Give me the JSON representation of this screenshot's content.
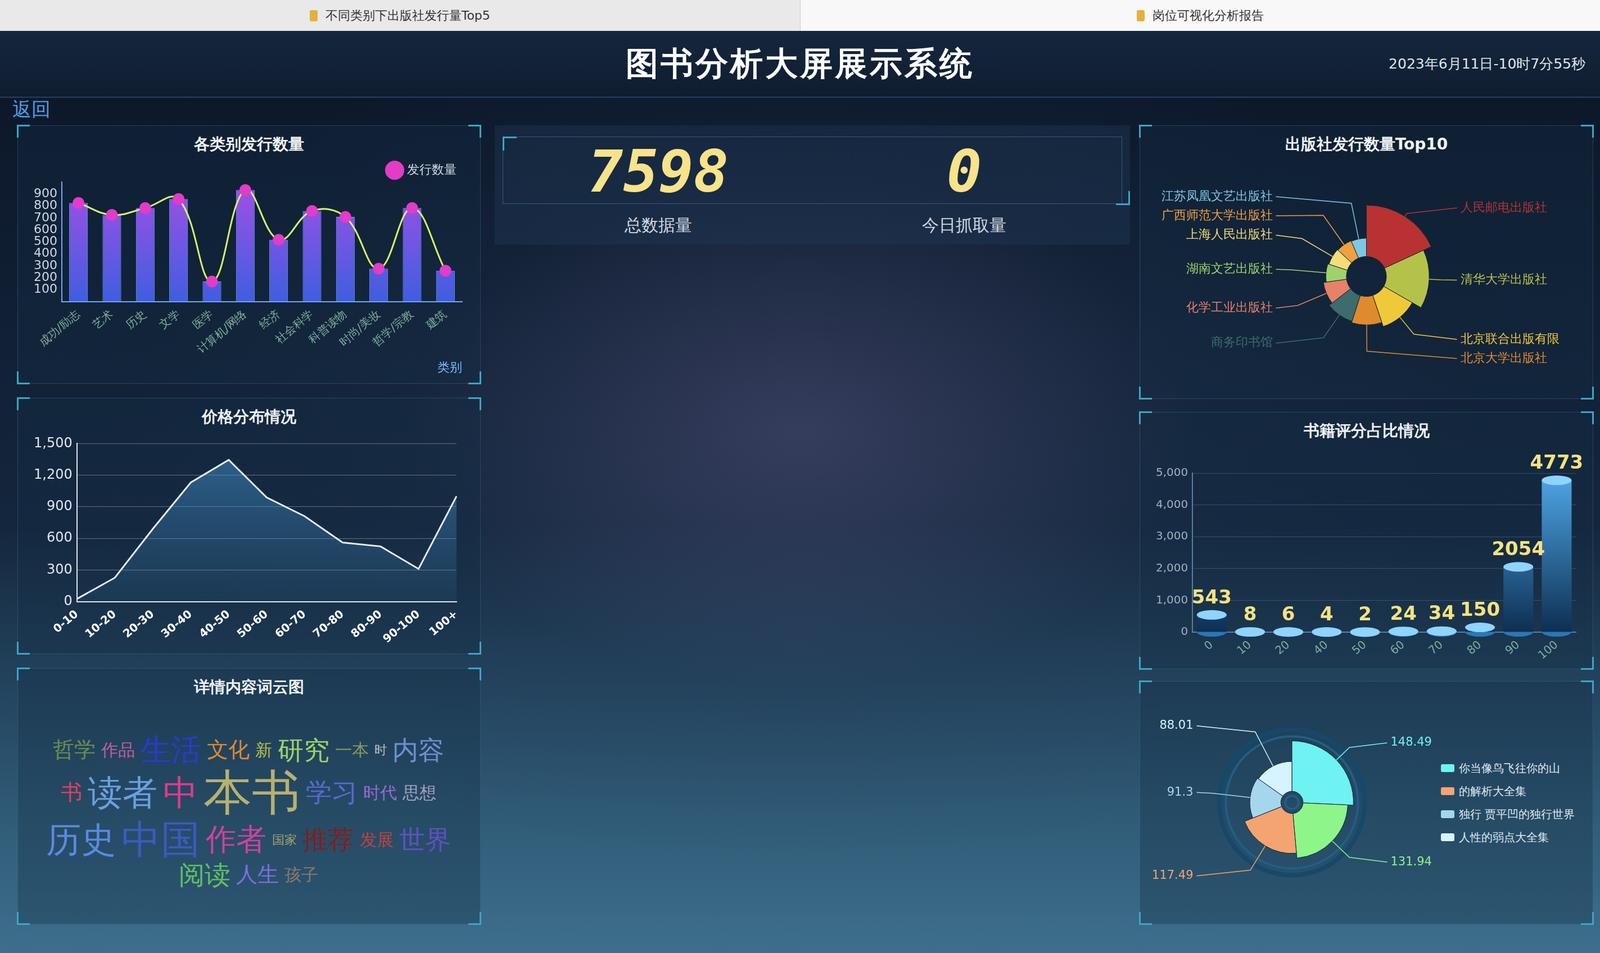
{
  "page": {
    "tabs": [
      "不同类别下出版社发行量Top5",
      "岗位可视化分析报告"
    ],
    "title": "图书分析大屏展示系统",
    "datetime": "2023年6月11日-10时7分55秒",
    "back": "返回",
    "stats": [
      {
        "label": "总数据量",
        "value": 7598
      },
      {
        "label": "今日抓取量",
        "value": 0
      }
    ]
  },
  "chart_data": [
    {
      "type": "bar",
      "title": "各类别发行数量",
      "categories": [
        "成功/励志",
        "艺术",
        "历史",
        "文学",
        "医学",
        "计算机/网络",
        "经济",
        "社会科学",
        "科普读物",
        "时尚/美妆",
        "哲学/宗教",
        "建筑"
      ],
      "series": [
        {
          "name": "发行数量",
          "type": "line",
          "color": "#d8f46a",
          "marker": "circle",
          "values": [
            825,
            725,
            783,
            858,
            167,
            933,
            517,
            758,
            708,
            275,
            783,
            258
          ]
        },
        {
          "type": "bar",
          "color": "#a24fe6",
          "values": [
            825,
            725,
            783,
            858,
            167,
            933,
            517,
            758,
            708,
            275,
            783,
            258
          ]
        }
      ],
      "xlabel": "类别",
      "ylim": [
        0,
        1000
      ],
      "yticks": [
        100,
        200,
        300,
        400,
        500,
        600,
        700,
        800,
        900
      ],
      "grid": false,
      "legend": "upper right"
    },
    {
      "type": "area",
      "title": "价格分布情况",
      "categories": [
        "0-10",
        "10-20",
        "20-30",
        "30-40",
        "40-50",
        "50-60",
        "60-70",
        "70-80",
        "80-90",
        "90-100",
        "100+"
      ],
      "values": [
        25,
        226,
        690,
        1130,
        1345,
        988,
        810,
        560,
        524,
        310,
        1000
      ],
      "color": "#e6eef8",
      "ylim": [
        0,
        1500
      ],
      "yticks": [
        0,
        300,
        600,
        900,
        {
          "value": 1200,
          "label": "1,200"
        },
        {
          "value": 1500,
          "label": "1,500"
        }
      ],
      "grid": true
    },
    {
      "type": "wordcloud",
      "title": "详情内容词云图",
      "words": [
        "哲学",
        "作品",
        "生活",
        "文化",
        "新",
        "研究",
        "一本",
        "时",
        "内容",
        "书",
        "读者",
        "中",
        "本书",
        "学习",
        "时代",
        "思想",
        "历史",
        "中国",
        "作者",
        "国家",
        "推荐",
        "发展",
        "世界",
        "阅读",
        "人生",
        "孩子"
      ],
      "weights": [
        3,
        2,
        5,
        3,
        2,
        4,
        2,
        1,
        4,
        3,
        6,
        6,
        9,
        4,
        2,
        2,
        6,
        7,
        5,
        1,
        4,
        2,
        4,
        4,
        3,
        2
      ],
      "colors": [
        "#6b8e4e",
        "#c05fa0",
        "#2a3ad0",
        "#e08a2e",
        "#b5c24a",
        "#9fd36a",
        "#8a9a5b",
        "#c0c0c0",
        "#7090d0",
        "#e04060",
        "#6aa0e0",
        "#e23a8a",
        "#b8b070",
        "#5a6ad0",
        "#9a6ad0",
        "#a0a0c0",
        "#5a8ae0",
        "#3a5ac0",
        "#d040a0",
        "#a0a070",
        "#802020",
        "#c04040",
        "#6050c0",
        "#60c060",
        "#7a70e0",
        "#8a7a6a"
      ]
    },
    {
      "type": "rose",
      "title": "出版社发行数量Top10",
      "categories": [
        "人民邮电出版社",
        "清华大学出版社",
        "北京联合出版有限",
        "北京大学出版社",
        "商务印书馆",
        "化学工业出版社",
        "湖南文艺出版社",
        "上海人民出版社",
        "广西师范大学出版社",
        "江苏凤凰文艺出版社"
      ],
      "values": [
        180,
        150,
        115,
        100,
        95,
        82,
        72,
        68,
        66,
        64
      ],
      "colors": [
        "#b83232",
        "#b5c24a",
        "#f0c93a",
        "#e08a2e",
        "#3d6b6e",
        "#e8806a",
        "#9fd36a",
        "#f5dc7a",
        "#f0a040",
        "#7ec8e3"
      ],
      "data_labels": false
    },
    {
      "type": "bar",
      "title": "书籍评分占比情况",
      "categories": [
        "0",
        "10",
        "20",
        "40",
        "50",
        "60",
        "70",
        "80",
        "90",
        "100"
      ],
      "values": [
        543,
        8,
        6,
        4,
        2,
        24,
        34,
        150,
        2054,
        4773
      ],
      "color": "#4fa8e8",
      "ylim": [
        0,
        5000
      ],
      "yticks": [
        0,
        {
          "value": 1000,
          "label": "1,000"
        },
        {
          "value": 2000,
          "label": "2,000"
        },
        {
          "value": 3000,
          "label": "3,000"
        },
        {
          "value": 4000,
          "label": "4,000"
        },
        {
          "value": 5000,
          "label": "5,000"
        }
      ],
      "grid": true,
      "data_labels": true
    },
    {
      "type": "rose",
      "categories": [
        "你当像鸟飞往你的山",
        null,
        "的解析大全集",
        "独行 贾平凹的独行世界",
        "人性的弱点大全集"
      ],
      "values": [
        148.49,
        131.94,
        117.49,
        91.3,
        88.01
      ],
      "colors": [
        "#6ff2f2",
        "#8ef58a",
        "#f4a470",
        "#a6d6ee",
        "#d6f4ff"
      ],
      "data_labels": true,
      "legend": "right"
    }
  ]
}
